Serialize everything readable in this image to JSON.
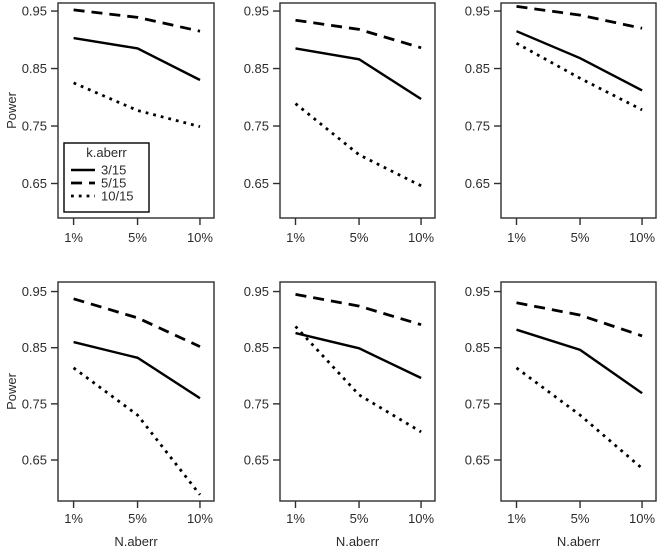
{
  "figure": {
    "ylabel": "Power",
    "xlabel": "N.aberr",
    "background_color": "#ffffff",
    "line_color": "#000000",
    "axis_color": "#2e2e2e",
    "text_color": "#2b2b2b",
    "legend": {
      "title": "k.aberr",
      "entries": [
        {
          "label": "3/15",
          "style": "solid"
        },
        {
          "label": "5/15",
          "style": "dashed"
        },
        {
          "label": "10/15",
          "style": "dotted"
        }
      ]
    }
  },
  "chart_data": [
    {
      "type": "line",
      "panel": "top-left",
      "x_categories": [
        "1%",
        "5%",
        "10%"
      ],
      "y_ticks": [
        0.95,
        0.85,
        0.75,
        0.65
      ],
      "ylim": [
        0.59,
        0.964
      ],
      "show_ylabel": true,
      "show_xlabel": false,
      "show_legend": true,
      "series": [
        {
          "name": "3/15",
          "style": "solid",
          "values": [
            0.903,
            0.885,
            0.83
          ]
        },
        {
          "name": "5/15",
          "style": "dashed",
          "values": [
            0.952,
            0.939,
            0.915
          ]
        },
        {
          "name": "10/15",
          "style": "dotted",
          "values": [
            0.825,
            0.777,
            0.749
          ]
        }
      ]
    },
    {
      "type": "line",
      "panel": "top-center",
      "x_categories": [
        "1%",
        "5%",
        "10%"
      ],
      "y_ticks": [
        0.95,
        0.85,
        0.75,
        0.65
      ],
      "ylim": [
        0.59,
        0.964
      ],
      "show_ylabel": false,
      "show_xlabel": false,
      "show_legend": false,
      "series": [
        {
          "name": "3/15",
          "style": "solid",
          "values": [
            0.885,
            0.866,
            0.797
          ]
        },
        {
          "name": "5/15",
          "style": "dashed",
          "values": [
            0.934,
            0.918,
            0.886
          ]
        },
        {
          "name": "10/15",
          "style": "dotted",
          "values": [
            0.789,
            0.7,
            0.646
          ]
        }
      ]
    },
    {
      "type": "line",
      "panel": "top-right",
      "x_categories": [
        "1%",
        "5%",
        "10%"
      ],
      "y_ticks": [
        0.95,
        0.85,
        0.75,
        0.65
      ],
      "ylim": [
        0.59,
        0.964
      ],
      "show_ylabel": false,
      "show_xlabel": false,
      "show_legend": false,
      "series": [
        {
          "name": "3/15",
          "style": "solid",
          "values": [
            0.915,
            0.868,
            0.812
          ]
        },
        {
          "name": "5/15",
          "style": "dashed",
          "values": [
            0.958,
            0.943,
            0.92
          ]
        },
        {
          "name": "10/15",
          "style": "dotted",
          "values": [
            0.894,
            0.833,
            0.778
          ]
        }
      ]
    },
    {
      "type": "line",
      "panel": "bottom-left",
      "x_categories": [
        "1%",
        "5%",
        "10%"
      ],
      "y_ticks": [
        0.95,
        0.85,
        0.75,
        0.65
      ],
      "ylim": [
        0.577,
        0.967
      ],
      "show_ylabel": true,
      "show_xlabel": true,
      "show_legend": false,
      "series": [
        {
          "name": "3/15",
          "style": "solid",
          "values": [
            0.86,
            0.832,
            0.76
          ]
        },
        {
          "name": "5/15",
          "style": "dashed",
          "values": [
            0.937,
            0.903,
            0.852
          ]
        },
        {
          "name": "10/15",
          "style": "dotted",
          "values": [
            0.814,
            0.73,
            0.588
          ]
        }
      ]
    },
    {
      "type": "line",
      "panel": "bottom-center",
      "x_categories": [
        "1%",
        "5%",
        "10%"
      ],
      "y_ticks": [
        0.95,
        0.85,
        0.75,
        0.65
      ],
      "ylim": [
        0.577,
        0.967
      ],
      "show_ylabel": false,
      "show_xlabel": true,
      "show_legend": false,
      "series": [
        {
          "name": "3/15",
          "style": "solid",
          "values": [
            0.876,
            0.849,
            0.796
          ]
        },
        {
          "name": "5/15",
          "style": "dashed",
          "values": [
            0.945,
            0.924,
            0.891
          ]
        },
        {
          "name": "10/15",
          "style": "dotted",
          "values": [
            0.888,
            0.766,
            0.7
          ]
        }
      ]
    },
    {
      "type": "line",
      "panel": "bottom-right",
      "x_categories": [
        "1%",
        "5%",
        "10%"
      ],
      "y_ticks": [
        0.95,
        0.85,
        0.75,
        0.65
      ],
      "ylim": [
        0.577,
        0.967
      ],
      "show_ylabel": false,
      "show_xlabel": true,
      "show_legend": false,
      "series": [
        {
          "name": "3/15",
          "style": "solid",
          "values": [
            0.882,
            0.846,
            0.769
          ]
        },
        {
          "name": "5/15",
          "style": "dashed",
          "values": [
            0.93,
            0.908,
            0.871
          ]
        },
        {
          "name": "10/15",
          "style": "dotted",
          "values": [
            0.814,
            0.73,
            0.635
          ]
        }
      ]
    }
  ]
}
